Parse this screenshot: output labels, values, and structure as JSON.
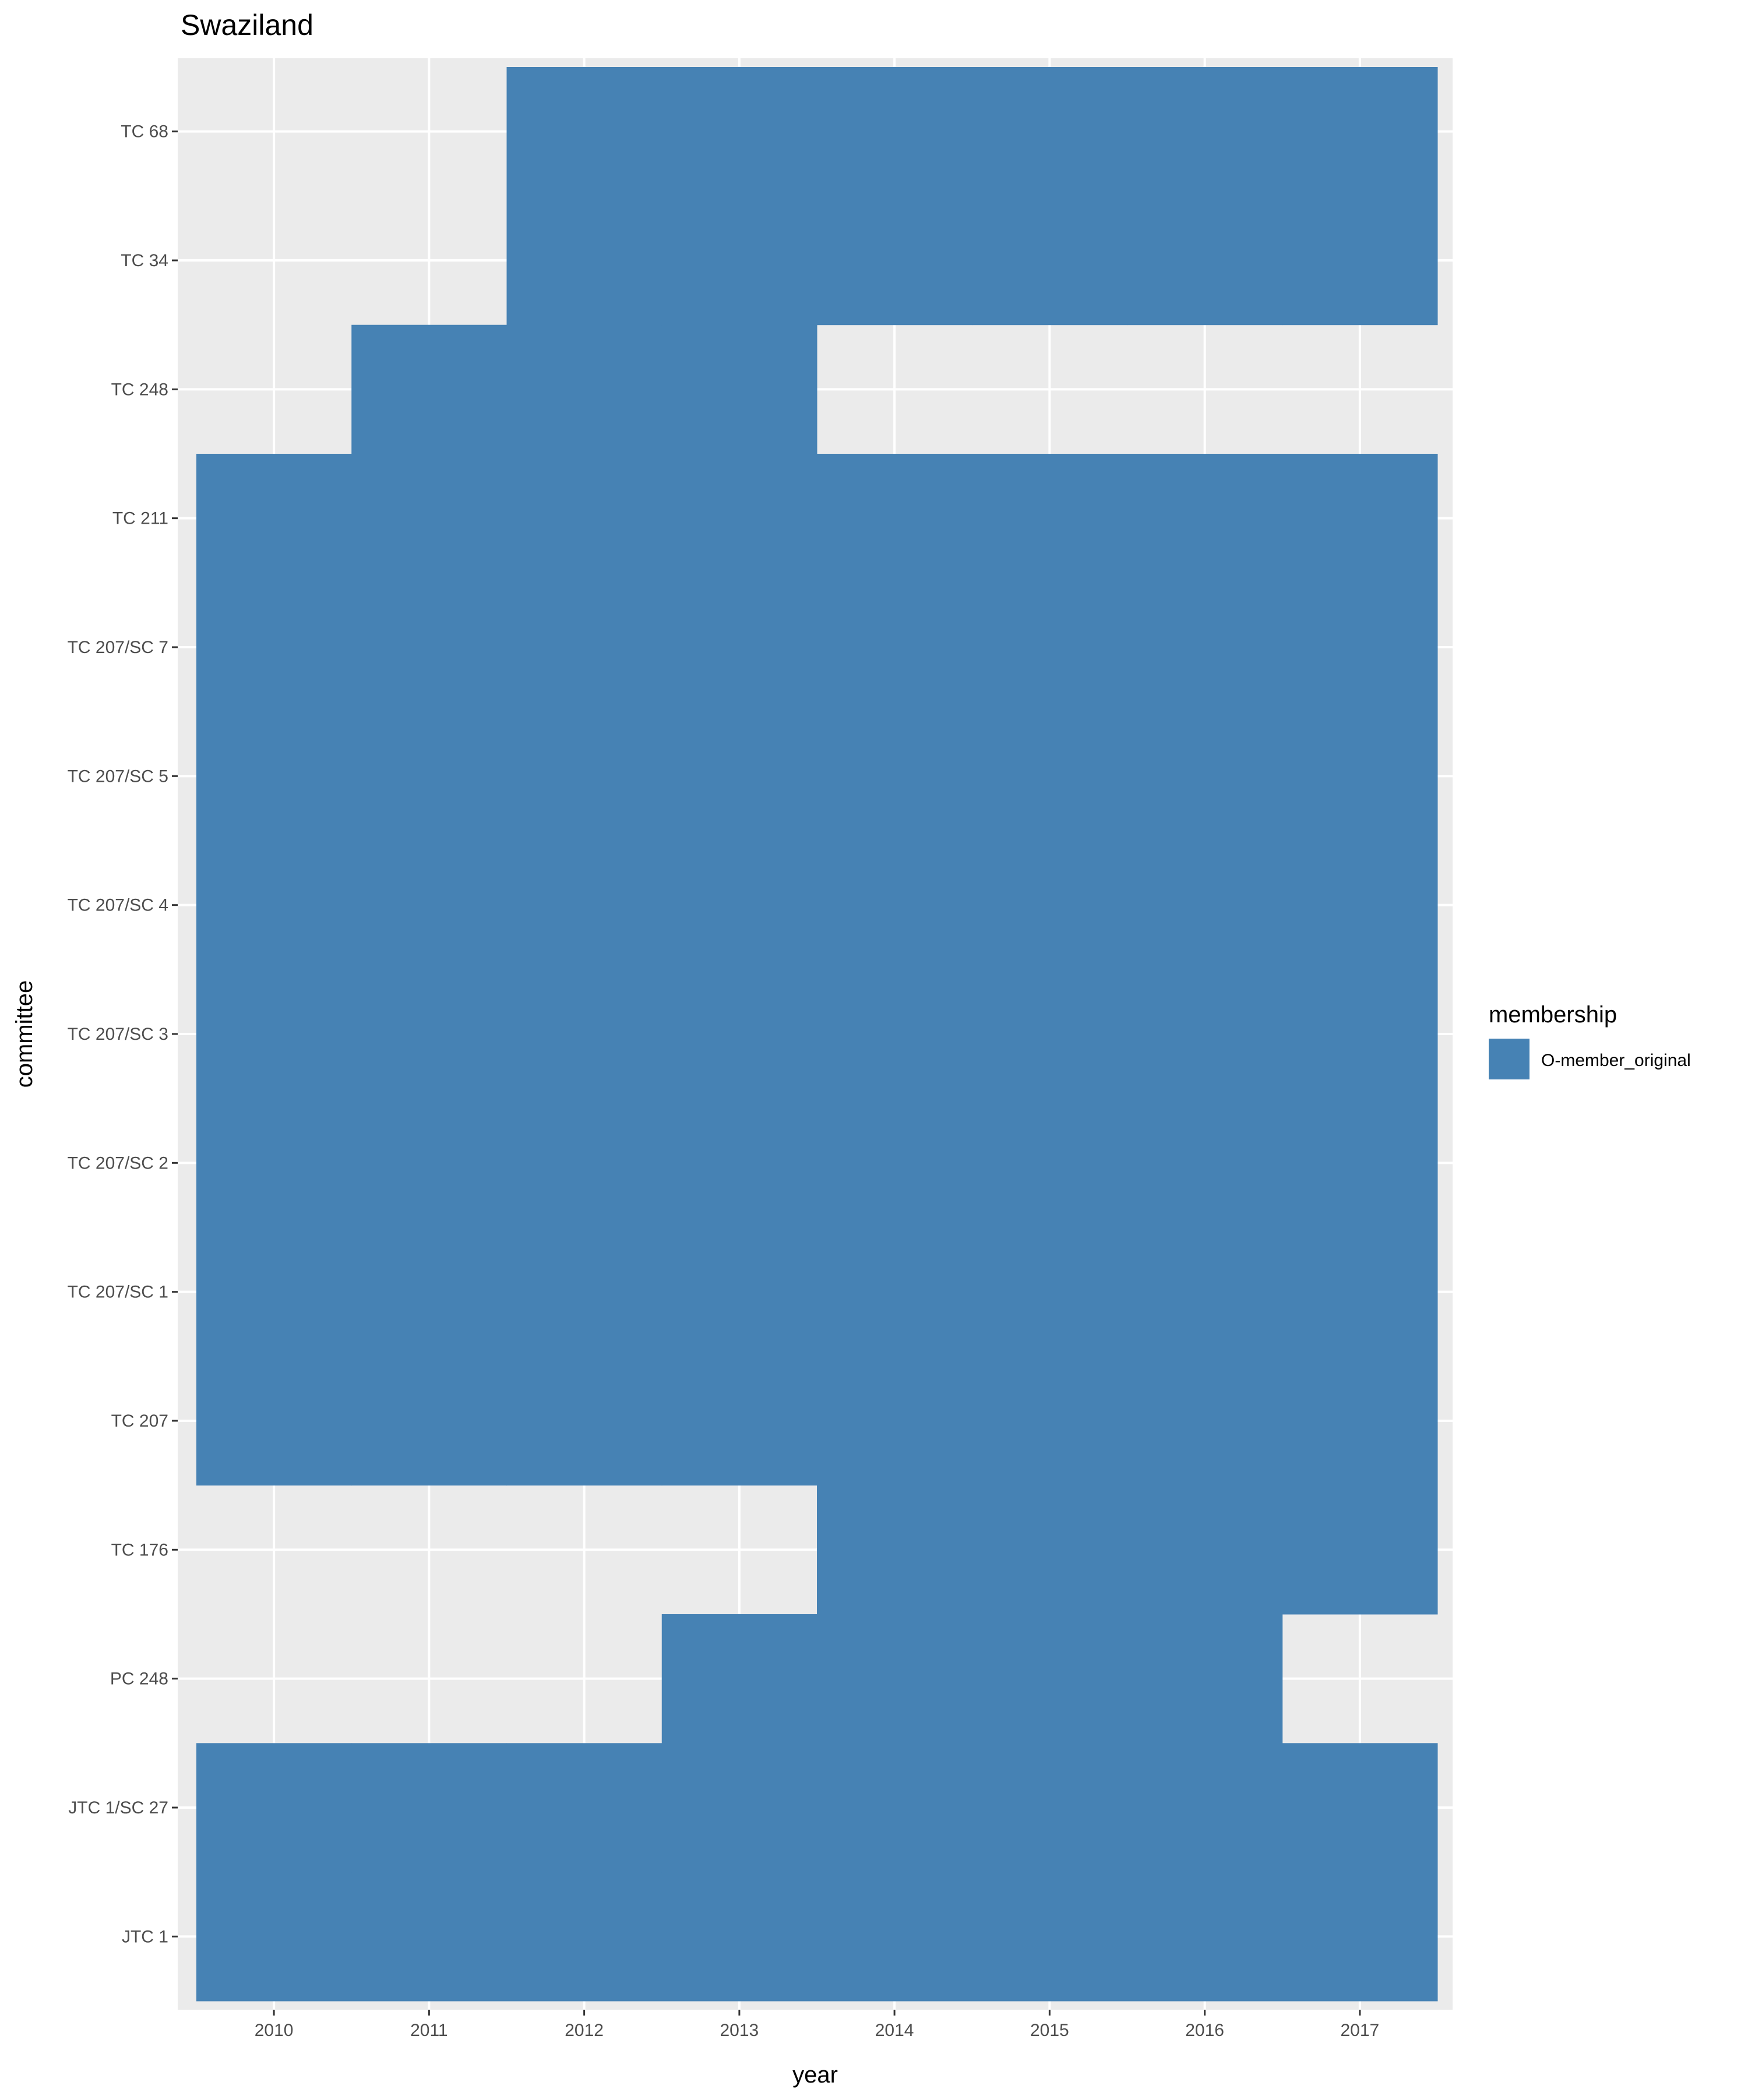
{
  "chart_data": {
    "type": "heatmap",
    "title": "Swaziland",
    "xlabel": "year",
    "ylabel": "committee",
    "x": [
      "2010",
      "2011",
      "2012",
      "2013",
      "2014",
      "2015",
      "2016",
      "2017"
    ],
    "y": [
      "JTC 1",
      "JTC 1/SC 27",
      "PC 248",
      "TC 176",
      "TC 207",
      "TC 207/SC 1",
      "TC 207/SC 2",
      "TC 207/SC 3",
      "TC 207/SC 4",
      "TC 207/SC 5",
      "TC 207/SC 7",
      "TC 211",
      "TC 248",
      "TC 34",
      "TC 68"
    ],
    "legend": {
      "title": "membership",
      "position": "right",
      "entries": [
        {
          "label": "O-member_original",
          "color": "#4682B4"
        }
      ]
    },
    "grid": true,
    "cells": [
      {
        "committee": "JTC 1",
        "years": [
          "2010",
          "2011",
          "2012",
          "2013",
          "2014",
          "2015",
          "2016",
          "2017"
        ],
        "membership": "O-member_original"
      },
      {
        "committee": "JTC 1/SC 27",
        "years": [
          "2010",
          "2011",
          "2012",
          "2013",
          "2014",
          "2015",
          "2016",
          "2017"
        ],
        "membership": "O-member_original"
      },
      {
        "committee": "PC 248",
        "years": [
          "2013",
          "2014",
          "2015",
          "2016"
        ],
        "membership": "O-member_original"
      },
      {
        "committee": "TC 176",
        "years": [
          "2014",
          "2015",
          "2016",
          "2017"
        ],
        "membership": "O-member_original"
      },
      {
        "committee": "TC 207",
        "years": [
          "2010",
          "2011",
          "2012",
          "2013",
          "2014",
          "2015",
          "2016",
          "2017"
        ],
        "membership": "O-member_original"
      },
      {
        "committee": "TC 207/SC 1",
        "years": [
          "2010",
          "2011",
          "2012",
          "2013",
          "2014",
          "2015",
          "2016",
          "2017"
        ],
        "membership": "O-member_original"
      },
      {
        "committee": "TC 207/SC 2",
        "years": [
          "2010",
          "2011",
          "2012",
          "2013",
          "2014",
          "2015",
          "2016",
          "2017"
        ],
        "membership": "O-member_original"
      },
      {
        "committee": "TC 207/SC 3",
        "years": [
          "2010",
          "2011",
          "2012",
          "2013",
          "2014",
          "2015",
          "2016",
          "2017"
        ],
        "membership": "O-member_original"
      },
      {
        "committee": "TC 207/SC 4",
        "years": [
          "2010",
          "2011",
          "2012",
          "2013",
          "2014",
          "2015",
          "2016",
          "2017"
        ],
        "membership": "O-member_original"
      },
      {
        "committee": "TC 207/SC 5",
        "years": [
          "2010",
          "2011",
          "2012",
          "2013",
          "2014",
          "2015",
          "2016",
          "2017"
        ],
        "membership": "O-member_original"
      },
      {
        "committee": "TC 207/SC 7",
        "years": [
          "2010",
          "2011",
          "2012",
          "2013",
          "2014",
          "2015",
          "2016",
          "2017"
        ],
        "membership": "O-member_original"
      },
      {
        "committee": "TC 211",
        "years": [
          "2010",
          "2011",
          "2012",
          "2013",
          "2014",
          "2015",
          "2016",
          "2017"
        ],
        "membership": "O-member_original"
      },
      {
        "committee": "TC 248",
        "years": [
          "2011",
          "2012",
          "2013"
        ],
        "membership": "O-member_original"
      },
      {
        "committee": "TC 34",
        "years": [
          "2012",
          "2013",
          "2014",
          "2015",
          "2016",
          "2017"
        ],
        "membership": "O-member_original"
      },
      {
        "committee": "TC 68",
        "years": [
          "2012",
          "2013",
          "2014",
          "2015",
          "2016",
          "2017"
        ],
        "membership": "O-member_original"
      }
    ],
    "colors": {
      "panel_background": "#EBEBEB",
      "grid_line": "#FFFFFF",
      "tile_fill": "#4682B4",
      "axis_text": "#4D4D4D",
      "axis_tick": "#333333",
      "title_text": "#000000"
    }
  }
}
